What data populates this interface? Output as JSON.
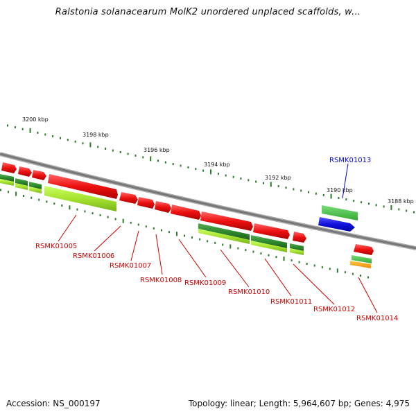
{
  "header": {
    "title": "Ralstonia solanacearum MolK2 unordered unplaced scaffolds, w..."
  },
  "footer": {
    "accession": "Accession: NS_000197",
    "topology": "Topology: linear; Length: 5,964,607 bp; Genes: 4,975"
  },
  "ruler": {
    "labels": [
      "3200 kbp",
      "3198 kbp",
      "3196 kbp",
      "3194 kbp",
      "3192 kbp",
      "3190 kbp",
      "3188 kbp"
    ]
  },
  "genes": [
    {
      "id": "RSMK01005",
      "color": "#cc0000"
    },
    {
      "id": "RSMK01006",
      "color": "#cc0000"
    },
    {
      "id": "RSMK01007",
      "color": "#cc0000"
    },
    {
      "id": "RSMK01008",
      "color": "#cc0000"
    },
    {
      "id": "RSMK01009",
      "color": "#cc0000"
    },
    {
      "id": "RSMK01010",
      "color": "#cc0000"
    },
    {
      "id": "RSMK01011",
      "color": "#cc0000"
    },
    {
      "id": "RSMK01012",
      "color": "#cc0000"
    },
    {
      "id": "RSMK01013",
      "color": "#0000cc"
    },
    {
      "id": "RSMK01014",
      "color": "#cc0000"
    }
  ],
  "colors": {
    "forward_gene": "#ee1111",
    "reverse_gene": "#ee1111",
    "cds_dark_green": "#2e8b2e",
    "cds_light_green": "#a6e22e",
    "selected_gene": "#1111dd",
    "misc_orange": "#ff9900",
    "ruler_tick": "#2a7a2a",
    "backbone": "#888888"
  }
}
